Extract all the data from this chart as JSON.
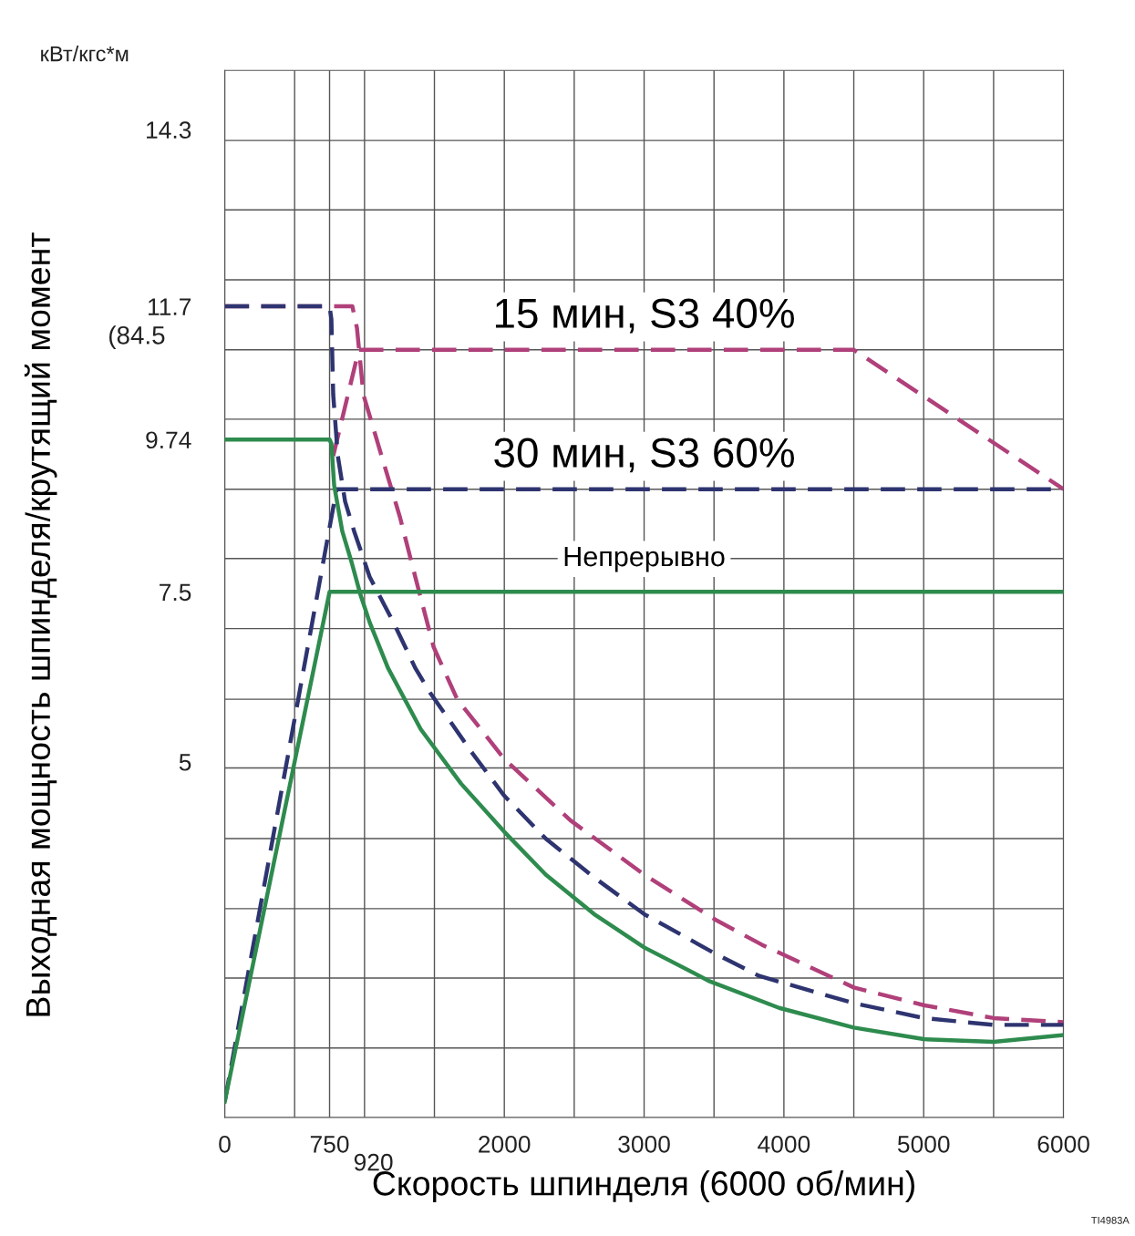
{
  "chart_data": {
    "type": "line",
    "xlabel": "Скорость шпинделя (6000 об/мин)",
    "ylabel": "Выходная мощность шпинделя/крутящий момент",
    "xlim": [
      0,
      6000
    ],
    "ylim": [
      -0.23,
      15.17
    ],
    "xticks": [
      0,
      {
        "value": 500,
        "label": null
      },
      750,
      {
        "value": 1000,
        "label": null
      },
      {
        "value": 1500,
        "label": null
      },
      2000,
      {
        "value": 2500,
        "label": null
      },
      3000,
      {
        "value": 3500,
        "label": null
      },
      4000,
      {
        "value": 4500,
        "label": null
      },
      5000,
      {
        "value": 5500,
        "label": null
      },
      6000
    ],
    "yticks": [
      {
        "value": 0.79,
        "label": null
      },
      {
        "value": 1.82,
        "label": null
      },
      {
        "value": 2.84,
        "label": null
      },
      {
        "value": 3.87,
        "label": null
      },
      {
        "value": 4.91,
        "label": null
      },
      5,
      {
        "value": 5.92,
        "label": null
      },
      {
        "value": 6.96,
        "label": null
      },
      7.5,
      {
        "value": 7.99,
        "label": null
      },
      {
        "value": 9.01,
        "label": null
      },
      9.74,
      {
        "value": 10.04,
        "label": null
      },
      {
        "value": 11.06,
        "label": null
      },
      11.7,
      {
        "value": 12.09,
        "label": null
      },
      {
        "value": 13.12,
        "label": null
      },
      {
        "value": 14.14,
        "label": null
      },
      14.3
    ],
    "grid": true,
    "legend": false,
    "marker": "none",
    "series": [
      {
        "name": "15 мин, S3 40%",
        "color": "#b0407a",
        "line_style": "dashed",
        "x": [
          776,
          959,
          4500,
          6000
        ],
        "values": [
          9.5,
          11.06,
          11.06,
          9.01
        ]
      },
      {
        "color": "#b0407a",
        "line_style": "dashed",
        "x": [
          0,
          913,
          946,
          992,
          1122,
          1252,
          1363,
          1494,
          1663,
          2000,
          2472,
          3000,
          3516,
          3842,
          4500,
          5000,
          5500,
          6000
        ],
        "values": [
          11.7,
          11.7,
          11.38,
          10.4,
          9.5,
          8.61,
          7.72,
          6.69,
          5.92,
          5.04,
          4.14,
          3.34,
          2.67,
          2.31,
          1.68,
          1.42,
          1.23,
          1.17
        ]
      },
      {
        "name": "30 мин, S3 60%",
        "color": "#2e3470",
        "line_style": "dashed",
        "x": [
          0,
          800,
          6000
        ],
        "values": [
          0,
          9.01,
          9.01
        ]
      },
      {
        "color": "#2e3470",
        "line_style": "dashed",
        "x": [
          0,
          750,
          763,
          776,
          809,
          861,
          926,
          1037,
          1207,
          1363,
          1468,
          1774,
          2000,
          2296,
          2642,
          3000,
          3516,
          3823,
          4500,
          5000,
          5500,
          6000
        ],
        "values": [
          11.7,
          11.7,
          11.51,
          10.4,
          9.5,
          8.83,
          8.39,
          7.72,
          7.05,
          6.38,
          6.02,
          5.12,
          4.5,
          3.87,
          3.3,
          2.76,
          2.17,
          1.85,
          1.45,
          1.23,
          1.13,
          1.13
        ]
      },
      {
        "name": "Непрерывно",
        "color": "#2e8b4e",
        "line_style": "solid",
        "x": [
          0,
          750,
          6000
        ],
        "values": [
          0,
          7.5,
          7.5
        ]
      },
      {
        "color": "#2e8b4e",
        "line_style": "solid",
        "x": [
          0,
          750,
          763,
          783,
          841,
          907,
          972,
          1037,
          1168,
          1402,
          1690,
          2000,
          2296,
          2642,
          3000,
          3470,
          3966,
          4500,
          5000,
          5500,
          6000
        ],
        "values": [
          9.74,
          9.74,
          9.68,
          9.06,
          8.39,
          7.94,
          7.45,
          7.05,
          6.38,
          5.48,
          4.68,
          3.97,
          3.34,
          2.76,
          2.27,
          1.77,
          1.38,
          1.09,
          0.92,
          0.88,
          0.98
        ]
      }
    ],
    "annotations": [
      "кВт/кгс*м",
      "(84.5",
      "TI4983A",
      "920"
    ]
  }
}
